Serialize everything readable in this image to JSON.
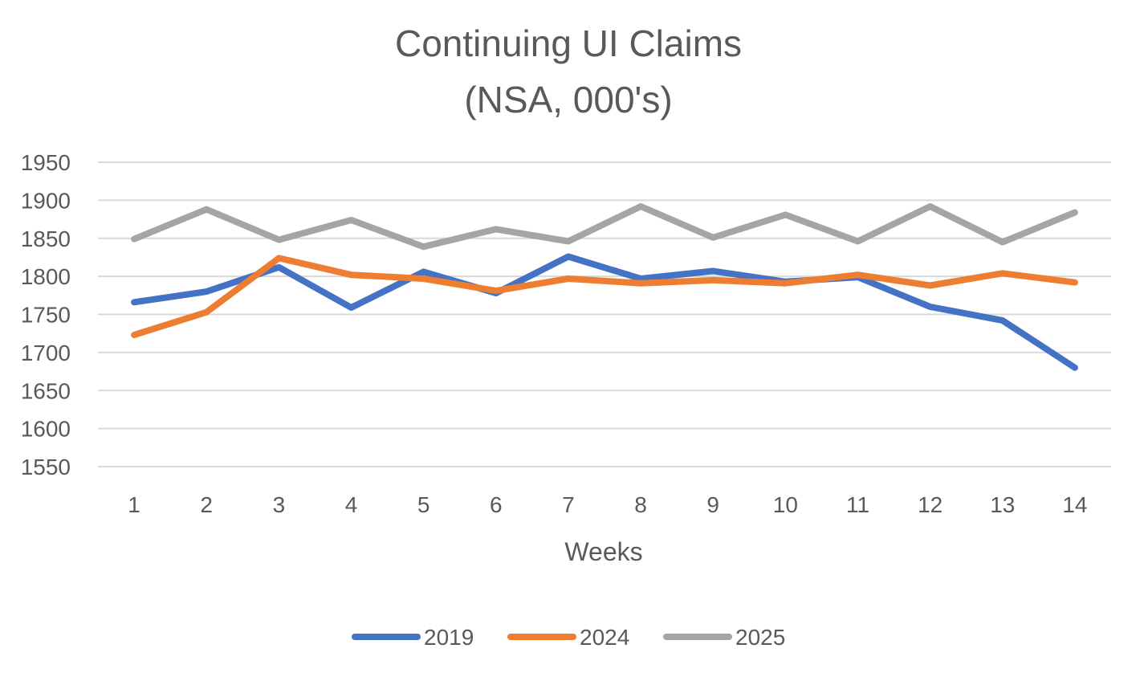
{
  "chart_data": {
    "type": "line",
    "title": "Continuing UI Claims",
    "subtitle": "(NSA, 000's)",
    "xlabel": "Weeks",
    "ylabel": "",
    "categories": [
      "1",
      "2",
      "3",
      "4",
      "5",
      "6",
      "7",
      "8",
      "9",
      "10",
      "11",
      "12",
      "13",
      "14"
    ],
    "yticks": [
      "1950",
      "1900",
      "1850",
      "1800",
      "1750",
      "1700",
      "1650",
      "1600",
      "1550"
    ],
    "ylim": [
      1550,
      1950
    ],
    "grid": true,
    "legend_position": "bottom",
    "series": [
      {
        "name": "2019",
        "color": "#4472c4",
        "values": [
          1766,
          1780,
          1812,
          1759,
          1806,
          1778,
          1826,
          1797,
          1807,
          1793,
          1799,
          1760,
          1742,
          1680
        ]
      },
      {
        "name": "2024",
        "color": "#ed7d31",
        "values": [
          1723,
          1753,
          1824,
          1802,
          1797,
          1781,
          1797,
          1791,
          1795,
          1791,
          1802,
          1788,
          1804,
          1792
        ]
      },
      {
        "name": "2025",
        "color": "#a5a5a5",
        "values": [
          1849,
          1888,
          1848,
          1874,
          1839,
          1862,
          1846,
          1892,
          1851,
          1881,
          1846,
          1892,
          1845,
          1884
        ]
      }
    ]
  }
}
